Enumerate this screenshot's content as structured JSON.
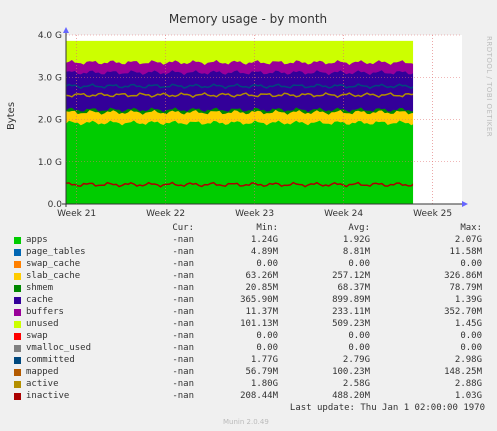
{
  "chart_data": {
    "type": "area",
    "title": "Memory usage - by month",
    "ylabel": "Bytes",
    "side_label": "RRDTOOL / TOBI OETIKER",
    "y_ticks": [
      "0.0",
      "1.0 G",
      "2.0 G",
      "3.0 G",
      "4.0 G"
    ],
    "y_tick_values": [
      0,
      1,
      2,
      3,
      4
    ],
    "ylim": [
      0,
      4
    ],
    "x_ticks": [
      "Week 21",
      "Week 22",
      "Week 23",
      "Week 24",
      "Week 25"
    ],
    "x_tick_values": [
      0,
      1,
      2,
      3,
      4
    ],
    "xlim": [
      -0.12,
      4.33
    ],
    "grid": true,
    "x_end": 4.33,
    "data_end": 3.86,
    "gaps": [
      [
        3.78,
        3.9
      ],
      [
        4.0,
        4.05
      ],
      [
        4.1,
        4.16
      ],
      [
        4.2,
        4.25
      ]
    ],
    "stack_totals": [
      {
        "name": "apps",
        "value": 1.92,
        "color": "#00cc00"
      },
      {
        "name": "slab_cache",
        "value": 2.17,
        "color": "#ffcc00"
      },
      {
        "name": "shmem",
        "value": 2.23,
        "color": "#008800"
      },
      {
        "name": "cache",
        "value": 3.11,
        "color": "#330099"
      },
      {
        "name": "buffers",
        "value": 3.35,
        "color": "#990099"
      },
      {
        "name": "unused",
        "value": 3.86,
        "color": "#ccff00"
      }
    ],
    "lines": [
      {
        "name": "committed",
        "value": 2.79,
        "color": "#00487d"
      },
      {
        "name": "active",
        "value": 2.58,
        "color": "#b38f00"
      },
      {
        "name": "inactive",
        "value": 0.46,
        "color": "#aa0000"
      }
    ],
    "columns": [
      "Cur:",
      "Min:",
      "Avg:",
      "Max:"
    ],
    "series": [
      {
        "name": "apps",
        "color": "#00cc00",
        "cur": "-nan",
        "min": "1.24G",
        "avg": "1.92G",
        "max": "2.07G"
      },
      {
        "name": "page_tables",
        "color": "#0066b3",
        "cur": "-nan",
        "min": "4.89M",
        "avg": "8.81M",
        "max": "11.58M"
      },
      {
        "name": "swap_cache",
        "color": "#ff8000",
        "cur": "-nan",
        "min": "0.00",
        "avg": "0.00",
        "max": "0.00"
      },
      {
        "name": "slab_cache",
        "color": "#ffcc00",
        "cur": "-nan",
        "min": "63.26M",
        "avg": "257.12M",
        "max": "326.86M"
      },
      {
        "name": "shmem",
        "color": "#008800",
        "cur": "-nan",
        "min": "20.85M",
        "avg": "68.37M",
        "max": "78.79M"
      },
      {
        "name": "cache",
        "color": "#330099",
        "cur": "-nan",
        "min": "365.90M",
        "avg": "899.89M",
        "max": "1.39G"
      },
      {
        "name": "buffers",
        "color": "#990099",
        "cur": "-nan",
        "min": "11.37M",
        "avg": "233.11M",
        "max": "352.70M"
      },
      {
        "name": "unused",
        "color": "#ccff00",
        "cur": "-nan",
        "min": "101.13M",
        "avg": "509.23M",
        "max": "1.45G"
      },
      {
        "name": "swap",
        "color": "#ff0000",
        "cur": "-nan",
        "min": "0.00",
        "avg": "0.00",
        "max": "0.00"
      },
      {
        "name": "vmalloc_used",
        "color": "#808080",
        "cur": "-nan",
        "min": "0.00",
        "avg": "0.00",
        "max": "0.00"
      },
      {
        "name": "committed",
        "color": "#00487d",
        "cur": "-nan",
        "min": "1.77G",
        "avg": "2.79G",
        "max": "2.98G"
      },
      {
        "name": "mapped",
        "color": "#b35a00",
        "cur": "-nan",
        "min": "56.79M",
        "avg": "100.23M",
        "max": "148.25M"
      },
      {
        "name": "active",
        "color": "#b38f00",
        "cur": "-nan",
        "min": "1.80G",
        "avg": "2.58G",
        "max": "2.88G"
      },
      {
        "name": "inactive",
        "color": "#aa0000",
        "cur": "-nan",
        "min": "208.44M",
        "avg": "488.20M",
        "max": "1.03G"
      }
    ]
  },
  "footer": {
    "last_update": "Last update: Thu Jan  1 02:00:00 1970",
    "version": "Munin 2.0.49"
  }
}
